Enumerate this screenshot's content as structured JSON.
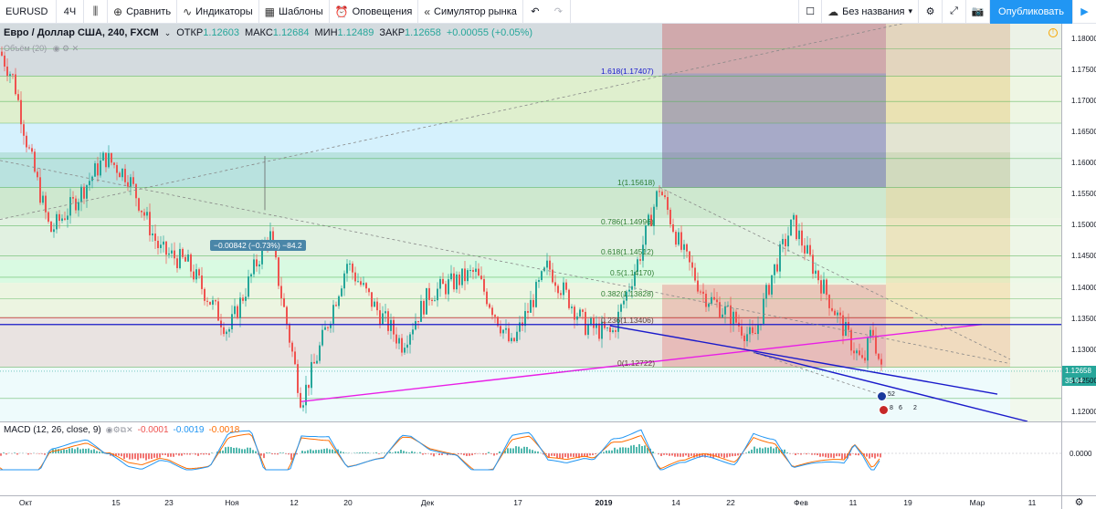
{
  "toolbar": {
    "symbol": "EURUSD",
    "interval": "4Ч",
    "compare": "Сравнить",
    "indicators": "Индикаторы",
    "templates": "Шаблоны",
    "alerts": "Оповещения",
    "replay": "Симулятор рынка",
    "layout_name": "Без названия",
    "publish": "Опубликовать"
  },
  "legend": {
    "title": "Евро / Доллар США, 240, FXCM",
    "open_label": "ОТКР",
    "open": "1.12603",
    "high_label": "МАКС",
    "high": "1.12684",
    "low_label": "МИН",
    "low": "1.12489",
    "close_label": "ЗАКР",
    "close": "1.12658",
    "change": "+0.00055 (+0.05%)",
    "volume": "Объём (20)"
  },
  "fib_levels": [
    {
      "label": "1.618(1.17407)",
      "price": 1.17407
    },
    {
      "label": "1(1.15618)",
      "price": 1.15618
    },
    {
      "label": "0.786(1.14996)",
      "price": 1.14996
    },
    {
      "label": "0.618(1.14512)",
      "price": 1.14512
    },
    {
      "label": "0.5(1.14170)",
      "price": 1.1417
    },
    {
      "label": "0.382(1.13828)",
      "price": 1.13828
    },
    {
      "label": "0.236(1.13406)",
      "price": 1.13406
    },
    {
      "label": "0(1.12722)",
      "price": 1.12722
    }
  ],
  "measure": "−0.00842 (−0.73%) −84.2",
  "price_axis": {
    "ticks": [
      "1.18000",
      "1.17500",
      "1.17000",
      "1.16500",
      "1.16000",
      "1.15500",
      "1.15000",
      "1.14500",
      "1.14000",
      "1.13500",
      "1.13000",
      "1.12500",
      "1.12000"
    ],
    "current_price": "1.12658",
    "countdown": "35:04"
  },
  "macd": {
    "label": "MACD (12, 26, close, 9)",
    "hist": "-0.0001",
    "macd": "-0.0019",
    "signal": "-0.0018",
    "axis": [
      "0.0000"
    ]
  },
  "time_axis": [
    "Окт",
    "15",
    "23",
    "Ноя",
    "12",
    "20",
    "Дек",
    "17",
    "2019",
    "14",
    "22",
    "Фев",
    "11",
    "19",
    "Мар",
    "11"
  ],
  "events": {
    "e1": "5",
    "e2": "2",
    "e3": "8",
    "e4": "6",
    "e5": "2"
  },
  "colors": {
    "up": "#26a69a",
    "down": "#ef5350",
    "accent": "#2196f3",
    "trend_magenta": "#e91ee6",
    "trend_blue": "#1a1acb"
  },
  "chart_data": {
    "type": "candlestick",
    "symbol": "EURUSD",
    "interval": "240",
    "ylim": [
      1.1185,
      1.1825
    ],
    "last_close": 1.12658,
    "swing_points": [
      {
        "date": "Окт",
        "price": 1.178
      },
      {
        "date": "15",
        "price": 1.161
      },
      {
        "date": "23",
        "price": 1.146
      },
      {
        "date": "Ноя",
        "price": 1.149
      },
      {
        "date": "12",
        "price": 1.1217
      },
      {
        "date": "20",
        "price": 1.142
      },
      {
        "date": "Дек",
        "price": 1.136
      },
      {
        "date": "17",
        "price": 1.1375
      },
      {
        "date": "2019",
        "price": 1.1325
      },
      {
        "date": "14",
        "price": 1.1562
      },
      {
        "date": "22",
        "price": 1.1345
      },
      {
        "date": "Фев",
        "price": 1.1505
      },
      {
        "date": "11",
        "price": 1.1265
      }
    ]
  }
}
